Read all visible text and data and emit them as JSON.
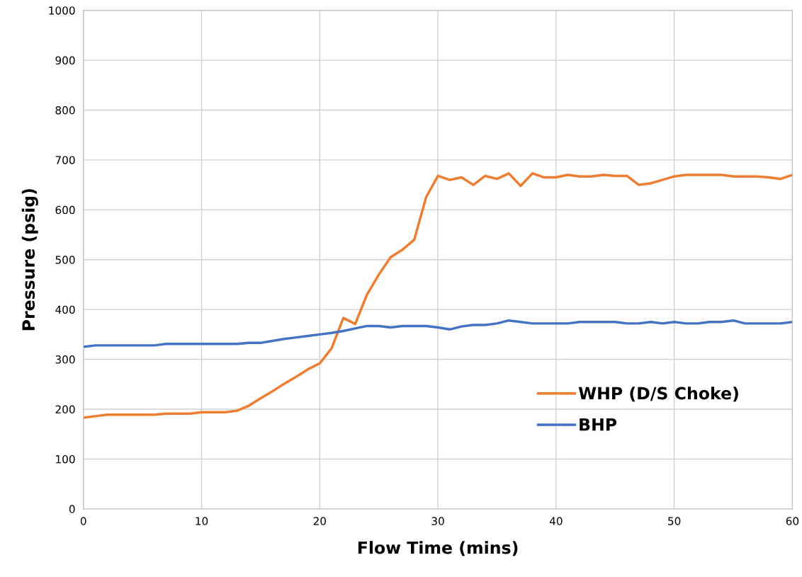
{
  "chart_data": {
    "type": "line",
    "xlabel": "Flow Time (mins)",
    "ylabel": "Pressure (psig)",
    "x": [
      0,
      1,
      2,
      3,
      4,
      5,
      6,
      7,
      8,
      9,
      10,
      11,
      12,
      13,
      14,
      15,
      16,
      17,
      18,
      19,
      20,
      21,
      22,
      23,
      24,
      25,
      26,
      27,
      28,
      29,
      30,
      31,
      32,
      33,
      34,
      35,
      36,
      37,
      38,
      39,
      40,
      41,
      42,
      43,
      44,
      45,
      46,
      47,
      48,
      49,
      50,
      51,
      52,
      53,
      54,
      55,
      56,
      57,
      58,
      59,
      60
    ],
    "series": [
      {
        "name": "WHP (D/S Choke)",
        "color": "#ed7d31",
        "values": [
          183,
          186,
          189,
          189,
          189,
          189,
          189,
          191,
          191,
          191,
          194,
          194,
          194,
          197,
          207,
          222,
          236,
          251,
          265,
          280,
          292,
          322,
          383,
          371,
          430,
          470,
          505,
          520,
          540,
          625,
          668,
          660,
          665,
          650,
          668,
          662,
          673,
          648,
          673,
          665,
          665,
          670,
          667,
          667,
          670,
          668,
          668,
          650,
          653,
          660,
          667,
          670,
          670,
          670,
          670,
          667,
          667,
          667,
          665,
          662,
          670
        ]
      },
      {
        "name": "BHP",
        "color": "#4472c4",
        "values": [
          325,
          328,
          328,
          328,
          328,
          328,
          328,
          331,
          331,
          331,
          331,
          331,
          331,
          331,
          333,
          333,
          337,
          341,
          344,
          347,
          350,
          353,
          357,
          362,
          367,
          367,
          364,
          367,
          367,
          367,
          364,
          360,
          366,
          369,
          369,
          372,
          378,
          375,
          372,
          372,
          372,
          372,
          375,
          375,
          375,
          375,
          372,
          372,
          375,
          372,
          375,
          372,
          372,
          375,
          375,
          378,
          372,
          372,
          372,
          372,
          375
        ]
      }
    ],
    "xlim": [
      0,
      60
    ],
    "xticks": [
      0,
      10,
      20,
      30,
      40,
      50,
      60
    ],
    "ylim": [
      0,
      1000
    ],
    "yticks": [
      0,
      100,
      200,
      300,
      400,
      500,
      600,
      700,
      800,
      900,
      1000
    ],
    "grid": true,
    "legend": "bottom right",
    "marker": "none",
    "line_style": "solid"
  }
}
